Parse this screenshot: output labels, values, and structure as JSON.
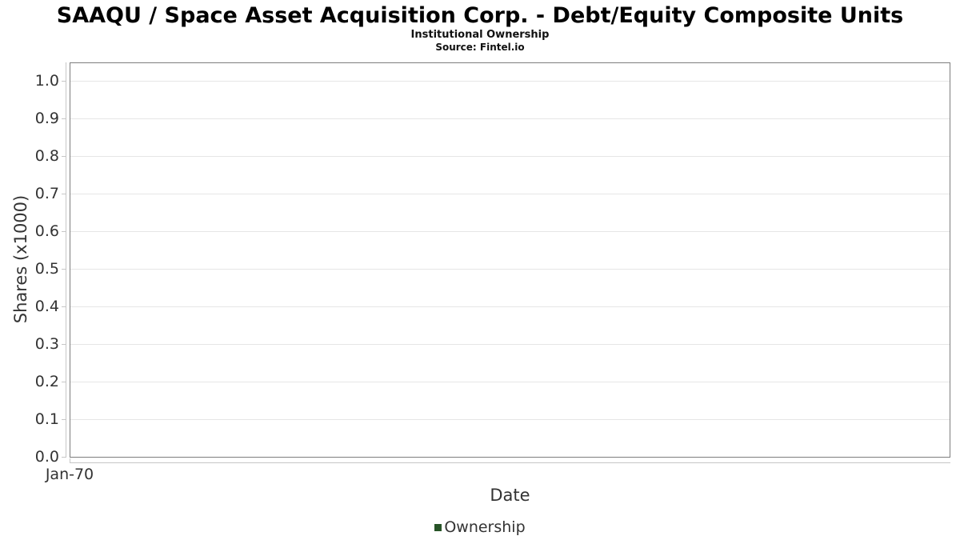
{
  "chart_data": {
    "type": "line",
    "title": "SAAQU / Space Asset Acquisition Corp. - Debt/Equity Composite Units",
    "subtitle": "Institutional Ownership",
    "source_text": "Source: Fintel.io",
    "xlabel": "Date",
    "ylabel": "Shares (x1000)",
    "x_ticks": [
      "Jan-70"
    ],
    "y_ticks": [
      "0.0",
      "0.1",
      "0.2",
      "0.3",
      "0.4",
      "0.5",
      "0.6",
      "0.7",
      "0.8",
      "0.9",
      "1.0"
    ],
    "ylim": [
      0,
      1.047
    ],
    "grid": true,
    "legend_position": "bottom",
    "series": [
      {
        "name": "Ownership",
        "color": "#275427",
        "x": [],
        "values": []
      }
    ]
  },
  "colors": {
    "series": "#275427",
    "grid": "#e6e6e6",
    "axis_line": "#c6c6c6",
    "plot_border": "#7d7d7d",
    "text": "#333333",
    "title_text": "#000000",
    "background": "#ffffff"
  }
}
